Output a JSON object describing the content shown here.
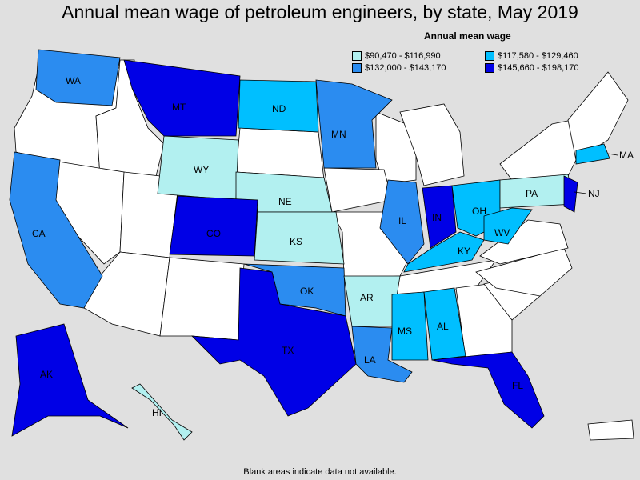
{
  "title": "Annual mean wage of petroleum engineers, by state, May 2019",
  "legend": {
    "title": "Annual mean wage",
    "items": [
      {
        "label": "$90,470 - $116,990",
        "color": "#b2f0f0"
      },
      {
        "label": "$117,580 - $129,460",
        "color": "#00bfff"
      },
      {
        "label": "$132,000 - $143,170",
        "color": "#2b8cf0"
      },
      {
        "label": "$145,660 - $198,170",
        "color": "#0000e6"
      }
    ]
  },
  "no_data_color": "#ffffff",
  "footnote": "Blank areas indicate data not available.",
  "states": {
    "WA": {
      "label": "WA",
      "tier": 2
    },
    "MT": {
      "label": "MT",
      "tier": 3
    },
    "ND": {
      "label": "ND",
      "tier": 1
    },
    "MN": {
      "label": "MN",
      "tier": 2
    },
    "WY": {
      "label": "WY",
      "tier": 0
    },
    "NE": {
      "label": "NE",
      "tier": 0
    },
    "CA": {
      "label": "CA",
      "tier": 2
    },
    "CO": {
      "label": "CO",
      "tier": 3
    },
    "KS": {
      "label": "KS",
      "tier": 0
    },
    "IL": {
      "label": "IL",
      "tier": 2
    },
    "IN": {
      "label": "IN",
      "tier": 3
    },
    "OH": {
      "label": "OH",
      "tier": 1
    },
    "PA": {
      "label": "PA",
      "tier": 0
    },
    "NJ": {
      "label": "NJ",
      "tier": 3
    },
    "MA": {
      "label": "MA",
      "tier": 1
    },
    "KY": {
      "label": "KY",
      "tier": 1
    },
    "WV": {
      "label": "WV",
      "tier": 1
    },
    "OK": {
      "label": "OK",
      "tier": 2
    },
    "AR": {
      "label": "AR",
      "tier": 0
    },
    "TX": {
      "label": "TX",
      "tier": 3
    },
    "LA": {
      "label": "LA",
      "tier": 2
    },
    "MS": {
      "label": "MS",
      "tier": 1
    },
    "AL": {
      "label": "AL",
      "tier": 1
    },
    "FL": {
      "label": "FL",
      "tier": 3
    },
    "AK": {
      "label": "AK",
      "tier": 3
    },
    "HI": {
      "label": "HI",
      "tier": 0
    }
  }
}
